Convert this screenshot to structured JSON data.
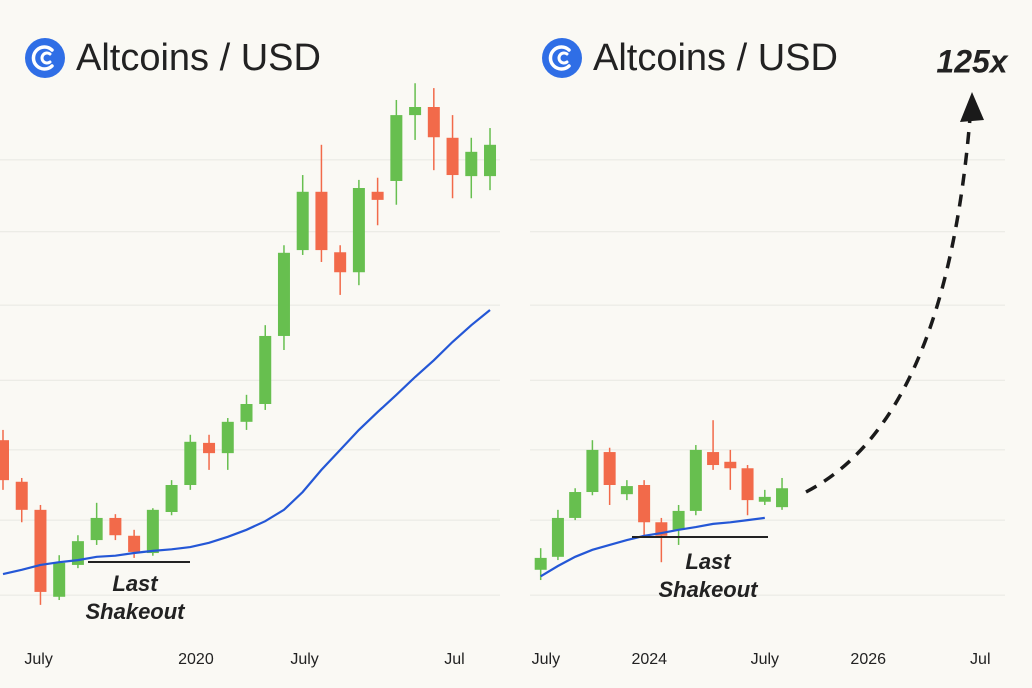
{
  "chart_data": [
    {
      "type": "candlestick",
      "title": "Altcoins / USD",
      "open": [
        33.3,
        25.6,
        20.4,
        4.3,
        10.2,
        14.8,
        18.9,
        15.6,
        12.4,
        20.0,
        25.0,
        32.8,
        30.9,
        36.7,
        40.0,
        52.6,
        68.5,
        79.3,
        68.1,
        64.4,
        79.3,
        81.3,
        93.5,
        95.0,
        89.3,
        82.2,
        82.2
      ],
      "high": [
        35.2,
        26.3,
        21.3,
        12.0,
        15.7,
        21.7,
        19.6,
        16.7,
        20.7,
        25.9,
        34.3,
        34.3,
        37.4,
        41.7,
        54.6,
        69.4,
        82.4,
        88.0,
        69.4,
        81.5,
        81.9,
        96.3,
        99.4,
        98.5,
        93.5,
        89.3,
        91.1
      ],
      "low": [
        24.1,
        18.1,
        2.8,
        3.7,
        9.6,
        13.9,
        14.8,
        11.5,
        11.9,
        19.4,
        24.1,
        27.8,
        27.8,
        35.2,
        38.9,
        50.0,
        67.6,
        66.3,
        60.2,
        62.0,
        73.1,
        76.9,
        88.9,
        83.3,
        78.1,
        78.1,
        79.6
      ],
      "close": [
        25.9,
        20.4,
        5.2,
        10.6,
        14.6,
        18.9,
        15.7,
        12.6,
        20.4,
        25.0,
        33.0,
        30.9,
        36.7,
        40.0,
        52.6,
        68.0,
        79.3,
        68.5,
        64.4,
        80.0,
        77.8,
        93.5,
        95.0,
        89.4,
        82.4,
        86.7,
        88.0
      ],
      "up_color": "#67bf4f",
      "down_color": "#f26a4a",
      "moving_average": {
        "color": "#2457d6",
        "values": [
          8.5,
          9.3,
          10.2,
          10.7,
          11.1,
          11.7,
          11.9,
          12.4,
          12.8,
          13.1,
          13.5,
          14.3,
          15.4,
          16.7,
          18.3,
          20.4,
          23.7,
          27.8,
          31.5,
          35.2,
          38.5,
          41.7,
          45.0,
          48.1,
          51.5,
          54.6,
          57.4
        ]
      },
      "xlim": [
        -0.16,
        26.8
      ],
      "xticks": [
        {
          "value": 1.9,
          "label": "July"
        },
        {
          "value": 10.3,
          "label": "2020"
        },
        {
          "value": 16.1,
          "label": "July"
        },
        {
          "value": 24.1,
          "label": "Jul"
        }
      ],
      "ylim": [
        0,
        100
      ],
      "yticks": [
        4.6,
        18.5,
        31.5,
        44.4,
        58.3,
        71.9,
        85.2
      ],
      "grid": true,
      "annotations": [
        {
          "text": "Last Shakeout"
        }
      ]
    },
    {
      "type": "candlestick",
      "title": "Altcoins / USD",
      "open": [
        9.3,
        11.7,
        18.9,
        23.7,
        31.1,
        23.3,
        25.0,
        18.1,
        16.7,
        20.2,
        31.1,
        29.3,
        28.1,
        21.9,
        20.9
      ],
      "high": [
        13.3,
        20.4,
        24.4,
        33.3,
        31.9,
        25.9,
        25.9,
        18.9,
        21.3,
        32.4,
        37.0,
        31.5,
        28.7,
        24.1,
        26.3
      ],
      "low": [
        7.4,
        11.1,
        18.5,
        23.1,
        21.3,
        22.2,
        15.7,
        10.7,
        13.9,
        19.4,
        27.8,
        24.1,
        19.4,
        21.3,
        20.4
      ],
      "close": [
        11.5,
        18.9,
        23.7,
        31.5,
        25.0,
        24.8,
        18.1,
        15.6,
        20.2,
        31.5,
        28.7,
        28.1,
        22.2,
        22.8,
        24.4
      ],
      "up_color": "#67bf4f",
      "down_color": "#f26a4a",
      "moving_average": {
        "color": "#2457d6",
        "values": [
          8.1,
          10.0,
          11.7,
          13.0,
          13.9,
          14.8,
          15.6,
          16.1,
          16.7,
          17.2,
          17.8,
          18.1,
          18.5,
          18.9,
          null
        ]
      },
      "xlim": [
        -1.2,
        28.5
      ],
      "xticks": [
        {
          "value": 0.3,
          "label": "July"
        },
        {
          "value": 6.3,
          "label": "2024"
        },
        {
          "value": 13,
          "label": "July"
        },
        {
          "value": 19,
          "label": "2026"
        },
        {
          "value": 25.5,
          "label": "Jul"
        }
      ],
      "ylim": [
        0,
        100
      ],
      "yticks": [
        4.6,
        18.5,
        31.5,
        44.4,
        58.3,
        71.9,
        85.2
      ],
      "grid": true,
      "annotations": [
        {
          "text": "Last Shakeout"
        },
        {
          "text": "125x"
        }
      ]
    }
  ]
}
